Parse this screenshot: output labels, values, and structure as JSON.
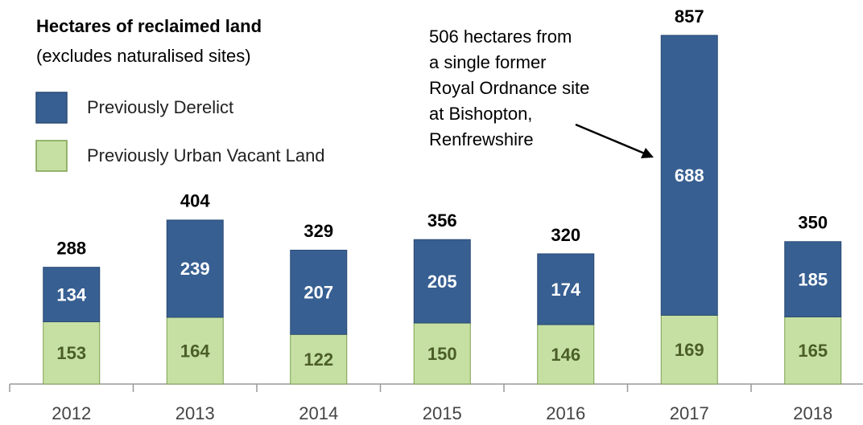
{
  "chart_data": {
    "type": "stacked_bar",
    "title": "Hectares of reclaimed land",
    "subtitle": "(excludes naturalised sites)",
    "categories": [
      "2012",
      "2013",
      "2014",
      "2015",
      "2016",
      "2017",
      "2018"
    ],
    "series": [
      {
        "name": "Previously Urban Vacant Land",
        "color": "#c6e0a4",
        "values": [
          153,
          164,
          122,
          150,
          146,
          169,
          165
        ]
      },
      {
        "name": "Previously Derelict",
        "color": "#375f92",
        "values": [
          134,
          239,
          207,
          205,
          174,
          688,
          185
        ]
      }
    ],
    "totals": [
      288,
      404,
      329,
      356,
      320,
      857,
      350
    ],
    "annotation": [
      "506 hectares  from",
      "a single former",
      "Royal Ordnance site",
      "at Bishopton,",
      "Renfrewshire"
    ]
  }
}
